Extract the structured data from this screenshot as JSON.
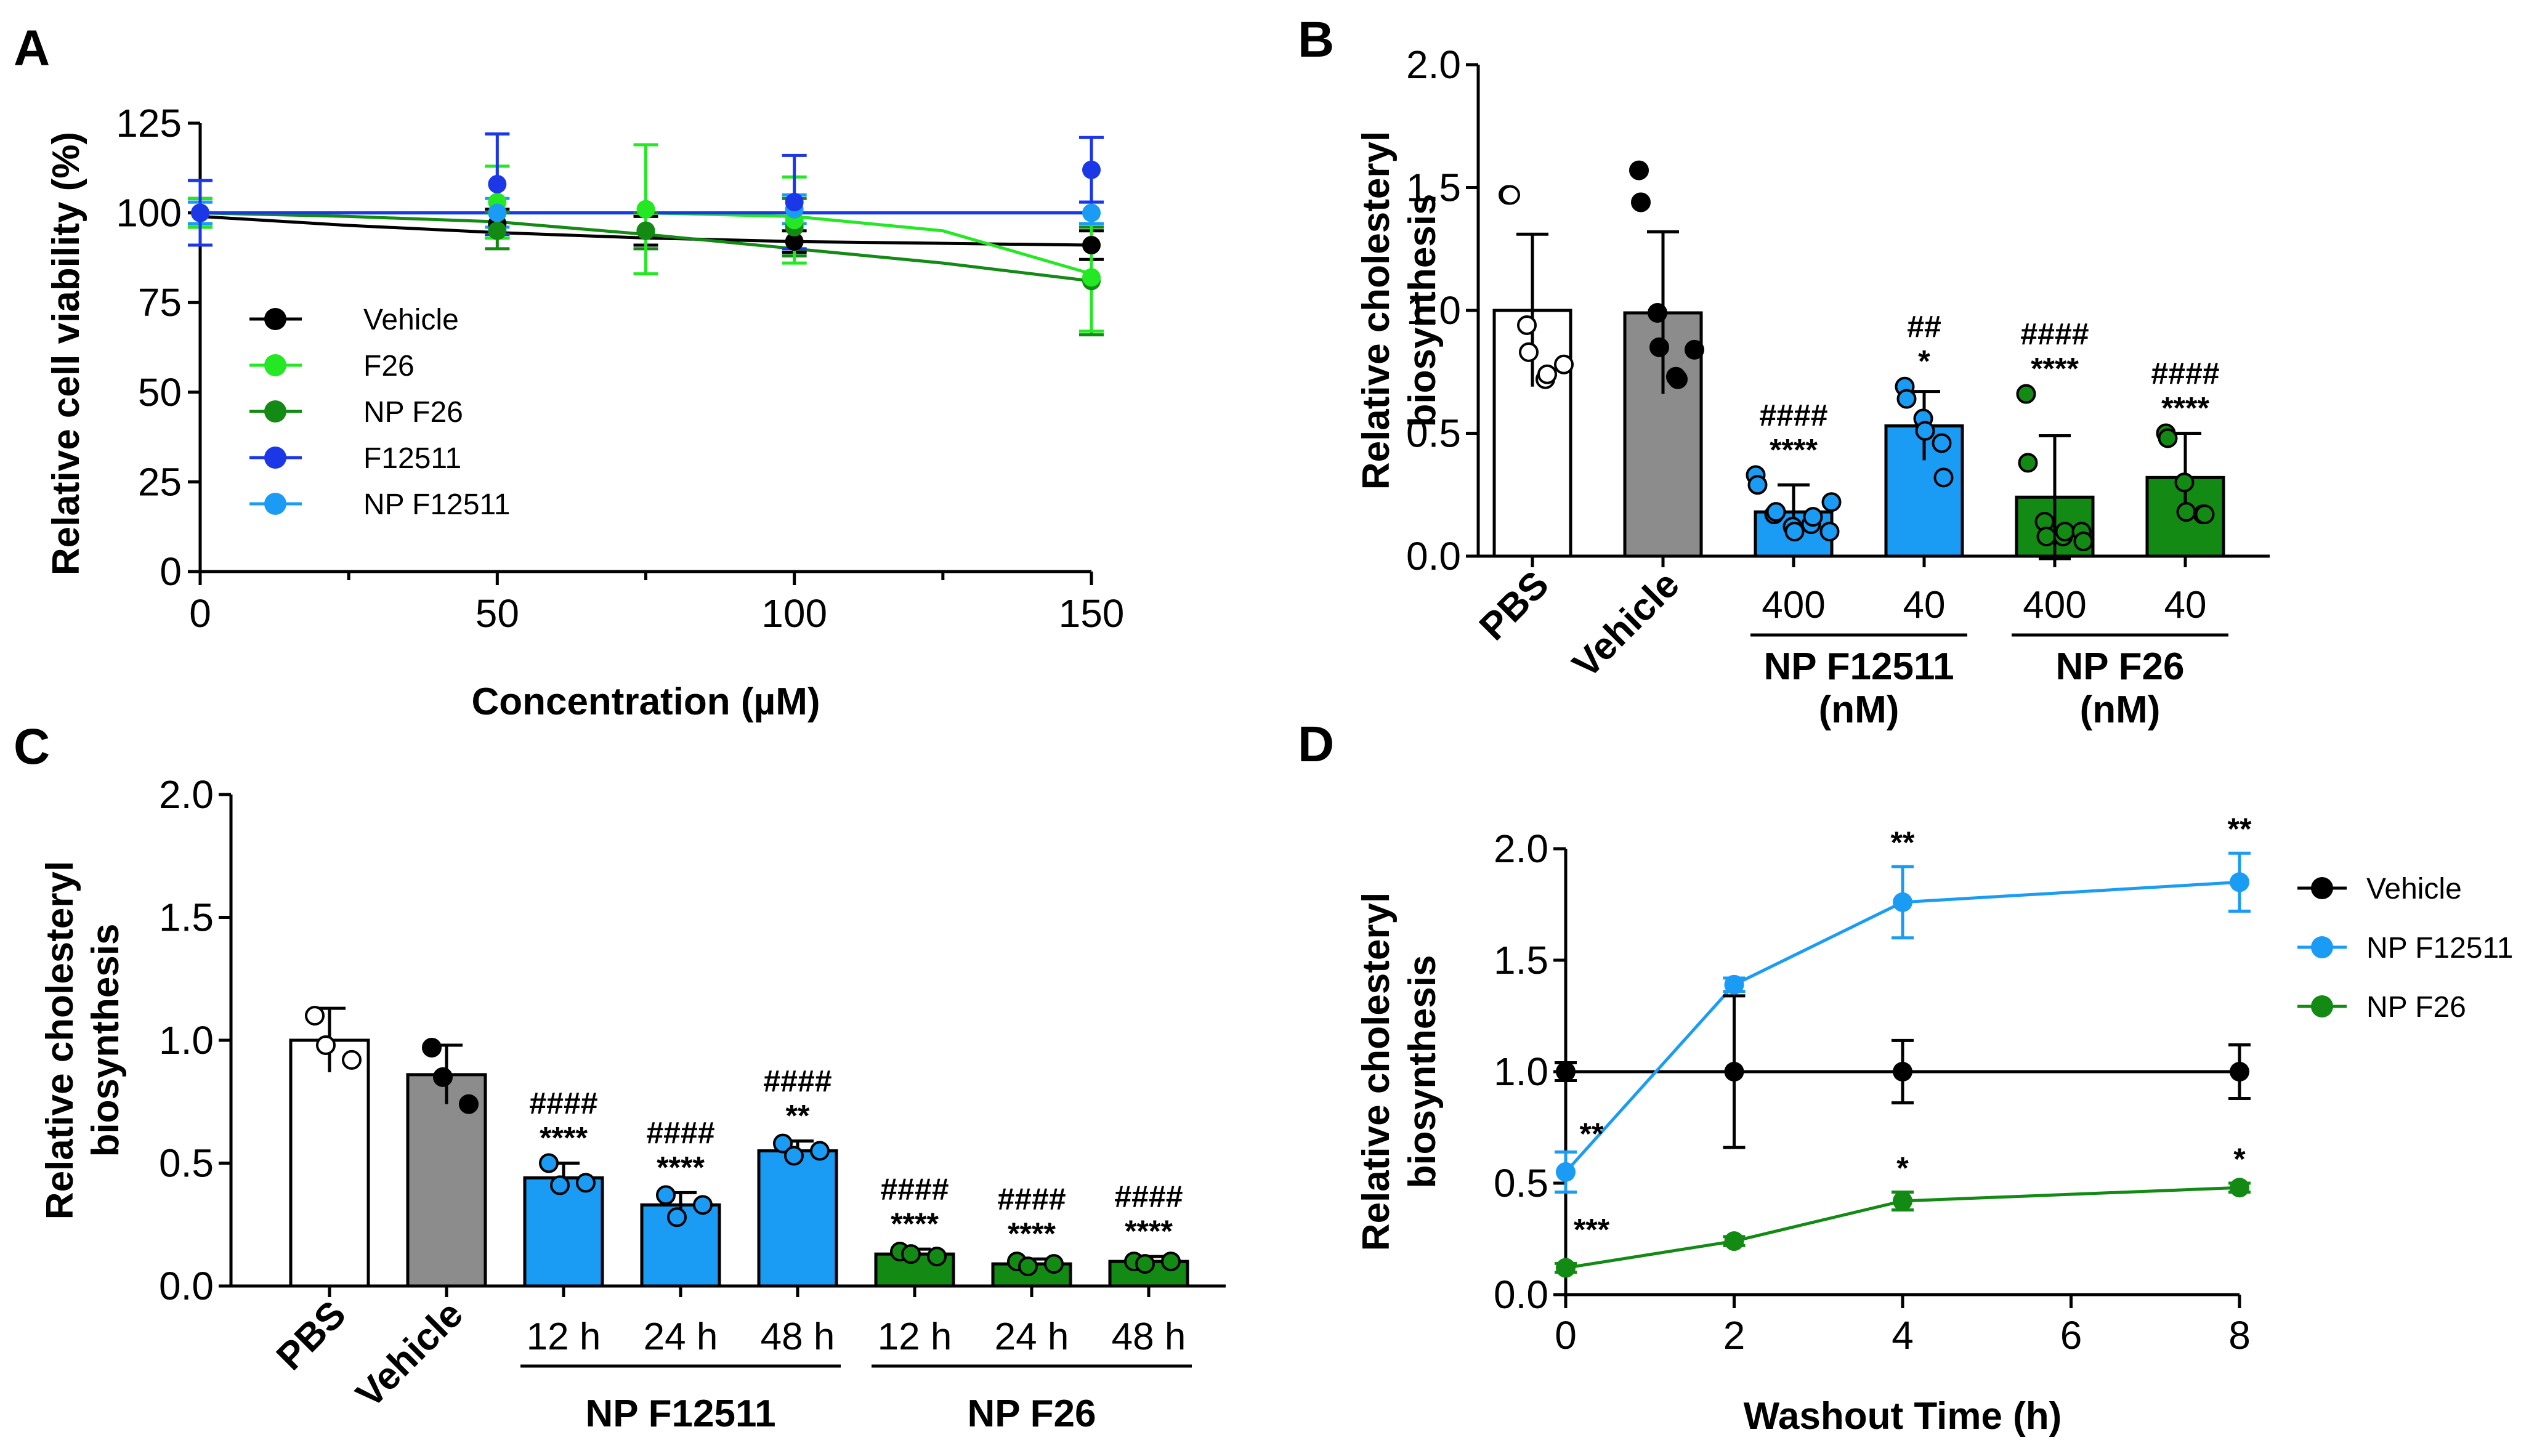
{
  "panels": {
    "A": "A",
    "B": "B",
    "C": "C",
    "D": "D"
  },
  "colors": {
    "black": "#000000",
    "light_green": "#23e823",
    "dark_green": "#138a13",
    "dark_blue": "#1c37e8",
    "light_blue": "#1b9cf4",
    "gray": "#8c8c8c",
    "white": "#ffffff"
  },
  "chart_data": [
    {
      "panel": "A",
      "type": "scatter",
      "xlabel": "Concentration (µM)",
      "ylabel": "Relative cell viability (%)",
      "xlim": [
        0,
        150
      ],
      "ylim": [
        0,
        125
      ],
      "xticks": [
        0,
        50,
        100,
        150
      ],
      "yticks": [
        0,
        25,
        50,
        75,
        100,
        125
      ],
      "x_minor_ticks": [
        25,
        75,
        125
      ],
      "series": [
        {
          "name": "Vehicle",
          "color": "#000000",
          "x": [
            0,
            50,
            75,
            100,
            150
          ],
          "y": [
            100,
            97,
            95,
            92,
            91
          ],
          "err": [
            4,
            4,
            4,
            3,
            4
          ],
          "fit": [
            [
              0,
              99
            ],
            [
              25,
              96.5
            ],
            [
              50,
              94.5
            ],
            [
              75,
              93
            ],
            [
              100,
              92
            ],
            [
              125,
              91.5
            ],
            [
              150,
              91
            ]
          ]
        },
        {
          "name": "F26",
          "color": "#23e823",
          "x": [
            0,
            50,
            75,
            100,
            150
          ],
          "y": [
            100,
            103,
            101,
            98,
            82
          ],
          "err": [
            4,
            10,
            18,
            12,
            15
          ],
          "fit": [
            [
              0,
              100
            ],
            [
              50,
              100
            ],
            [
              75,
              100
            ],
            [
              100,
              99
            ],
            [
              125,
              95
            ],
            [
              150,
              83
            ]
          ]
        },
        {
          "name": "NP F26",
          "color": "#138a13",
          "x": [
            0,
            50,
            75,
            100,
            150
          ],
          "y": [
            100,
            95,
            95,
            96,
            81
          ],
          "err": [
            3,
            5,
            5,
            8,
            15
          ],
          "fit": [
            [
              0,
              100
            ],
            [
              25,
              99
            ],
            [
              50,
              97.5
            ],
            [
              75,
              94
            ],
            [
              100,
              90
            ],
            [
              125,
              86
            ],
            [
              150,
              81
            ]
          ]
        },
        {
          "name": "F12511",
          "color": "#1c37e8",
          "x": [
            0,
            50,
            100,
            150
          ],
          "y": [
            100,
            108,
            103,
            112
          ],
          "err": [
            9,
            14,
            13,
            9
          ],
          "fit": [
            [
              0,
              100
            ],
            [
              150,
              100
            ]
          ]
        },
        {
          "name": "NP F12511",
          "color": "#1b9cf4",
          "x": [
            0,
            50,
            100,
            150
          ],
          "y": [
            100,
            100,
            101,
            100
          ],
          "err": [
            3,
            4,
            4,
            3
          ],
          "fit": [
            [
              0,
              100
            ],
            [
              150,
              100
            ]
          ]
        }
      ]
    },
    {
      "panel": "B",
      "type": "bar",
      "ylabel": "Relative cholesteryl biosynthesis",
      "ylim": [
        0,
        2.0
      ],
      "yticks": [
        "0.0",
        "0.5",
        "1.0",
        "1.5",
        "2.0"
      ],
      "categories": [
        "PBS",
        "Vehicle",
        "400",
        "40",
        "400",
        "40"
      ],
      "groups": [
        {
          "label": "NP F12511",
          "unit": "(nM)"
        },
        {
          "label": "NP F26",
          "unit": "(nM)"
        }
      ],
      "values": [
        1.0,
        0.99,
        0.18,
        0.53,
        0.24,
        0.32
      ],
      "errors": [
        0.31,
        0.33,
        0.11,
        0.14,
        0.25,
        0.18
      ],
      "bar_colors": [
        "#ffffff",
        "#8c8c8c",
        "#1b9cf4",
        "#1b9cf4",
        "#138a13",
        "#138a13"
      ],
      "dot_fill": [
        "#ffffff",
        "#000000",
        "#1b9cf4",
        "#1b9cf4",
        "#138a13",
        "#138a13"
      ],
      "points": [
        [
          1.47,
          1.47,
          0.94,
          0.83,
          0.72,
          0.74,
          0.78
        ],
        [
          1.57,
          1.44,
          0.99,
          0.85,
          0.73,
          0.72,
          0.84
        ],
        [
          0.33,
          0.29,
          0.17,
          0.18,
          0.12,
          0.1,
          0.13,
          0.16,
          0.1,
          0.22
        ],
        [
          0.69,
          0.64,
          0.56,
          0.51,
          0.46,
          0.32
        ],
        [
          0.66,
          0.38,
          0.14,
          0.08,
          0.08,
          0.1,
          0.1,
          0.06
        ],
        [
          0.5,
          0.48,
          0.3,
          0.18,
          0.17,
          0.17
        ]
      ],
      "annotations": [
        [],
        [],
        [
          "####",
          "****"
        ],
        [
          "##",
          "*"
        ],
        [
          "####",
          "****"
        ],
        [
          "####",
          "****"
        ]
      ]
    },
    {
      "panel": "C",
      "type": "bar",
      "ylabel": "Relative cholesteryl biosynthesis",
      "ylim": [
        0,
        2.0
      ],
      "yticks": [
        "0.0",
        "0.5",
        "1.0",
        "1.5",
        "2.0"
      ],
      "categories": [
        "PBS",
        "Vehicle",
        "12 h",
        "24 h",
        "48 h",
        "12 h",
        "24 h",
        "48 h"
      ],
      "groups": [
        {
          "label": "NP F12511"
        },
        {
          "label": "NP F26"
        }
      ],
      "values": [
        1.0,
        0.86,
        0.44,
        0.33,
        0.55,
        0.13,
        0.09,
        0.1
      ],
      "errors": [
        0.13,
        0.12,
        0.06,
        0.05,
        0.04,
        0.02,
        0.02,
        0.02
      ],
      "bar_colors": [
        "#ffffff",
        "#8c8c8c",
        "#1b9cf4",
        "#1b9cf4",
        "#1b9cf4",
        "#138a13",
        "#138a13",
        "#138a13"
      ],
      "dot_fill": [
        "#ffffff",
        "#000000",
        "#1b9cf4",
        "#1b9cf4",
        "#1b9cf4",
        "#138a13",
        "#138a13",
        "#138a13"
      ],
      "points": [
        [
          1.1,
          0.98,
          0.92
        ],
        [
          0.97,
          0.85,
          0.74
        ],
        [
          0.5,
          0.41,
          0.42
        ],
        [
          0.37,
          0.28,
          0.33
        ],
        [
          0.58,
          0.53,
          0.55
        ],
        [
          0.14,
          0.13,
          0.12
        ],
        [
          0.1,
          0.08,
          0.09
        ],
        [
          0.1,
          0.09,
          0.1
        ]
      ],
      "annotations": [
        [],
        [],
        [
          "####",
          "****"
        ],
        [
          "####",
          "****"
        ],
        [
          "####",
          "**"
        ],
        [
          "####",
          "****"
        ],
        [
          "####",
          "****"
        ],
        [
          "####",
          "****"
        ]
      ]
    },
    {
      "panel": "D",
      "type": "line",
      "xlabel": "Washout Time (h)",
      "ylabel": "Relative cholesteryl biosynthesis",
      "xlim": [
        0,
        8
      ],
      "ylim": [
        0,
        2.0
      ],
      "xticks": [
        0,
        2,
        4,
        6,
        8
      ],
      "yticks": [
        "0.0",
        "0.5",
        "1.0",
        "1.5",
        "2.0"
      ],
      "series": [
        {
          "name": "Vehicle",
          "color": "#000000",
          "x": [
            0,
            2,
            4,
            8
          ],
          "y": [
            1.0,
            1.0,
            1.0,
            1.0
          ],
          "err": [
            0.04,
            0.34,
            0.14,
            0.12
          ],
          "sig": [
            "",
            "",
            "",
            ""
          ]
        },
        {
          "name": "NP F12511",
          "color": "#1b9cf4",
          "x": [
            0,
            2,
            4,
            8
          ],
          "y": [
            0.55,
            1.39,
            1.76,
            1.85
          ],
          "err": [
            0.09,
            0.03,
            0.16,
            0.13
          ],
          "sig": [
            "**",
            "",
            "**",
            "**"
          ]
        },
        {
          "name": "NP F26",
          "color": "#138a13",
          "x": [
            0,
            2,
            4,
            8
          ],
          "y": [
            0.12,
            0.24,
            0.42,
            0.48
          ],
          "err": [
            0.02,
            0.02,
            0.04,
            0.02
          ],
          "sig": [
            "***",
            "",
            "*",
            "*"
          ]
        }
      ]
    }
  ]
}
